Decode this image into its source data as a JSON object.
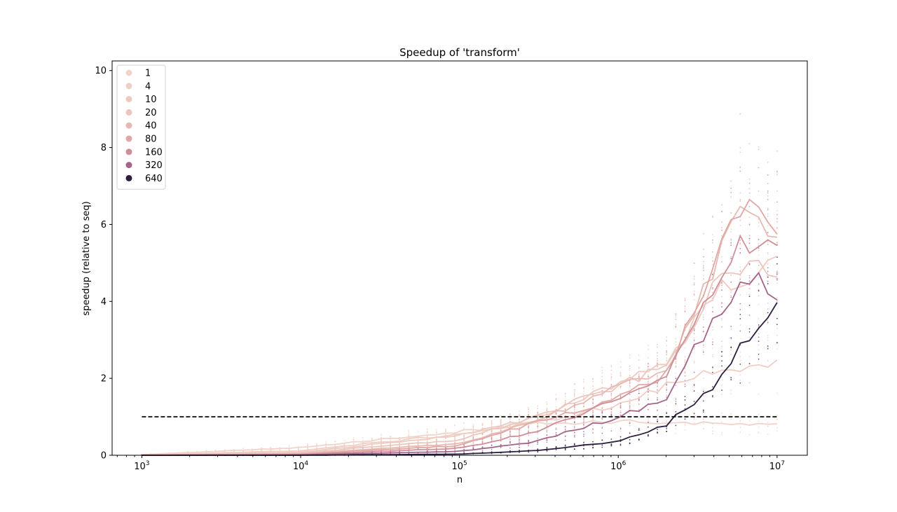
{
  "chart_data": {
    "type": "line",
    "title": "Speedup of 'transform'",
    "xlabel": "n",
    "ylabel": "speedup (relative to seq)",
    "xscale": "log",
    "xlim": [
      650,
      15500000
    ],
    "ylim": [
      0,
      10.25
    ],
    "x_ticks": [
      1000,
      10000,
      100000,
      1000000,
      10000000
    ],
    "x_tick_bases": [
      "10",
      "10",
      "10",
      "10",
      "10"
    ],
    "x_tick_exps": [
      "3",
      "4",
      "5",
      "6",
      "7"
    ],
    "y_ticks": [
      0,
      2,
      4,
      6,
      8,
      10
    ],
    "y_tick_labels": [
      "0",
      "2",
      "4",
      "6",
      "8",
      "10"
    ],
    "legend_position": "upper-left",
    "reference_line": {
      "y": 1.0,
      "x_range": [
        1000,
        10000000
      ],
      "style": "dashed",
      "color": "#1a1a1a"
    },
    "series": [
      {
        "name": "1",
        "color": "#f1d3c9",
        "anchors": [
          [
            1000,
            0.02
          ],
          [
            10000,
            0.2
          ],
          [
            100000,
            0.62
          ],
          [
            300000,
            0.82
          ],
          [
            1000000,
            0.88
          ],
          [
            3000000,
            0.83
          ],
          [
            10000000,
            0.78
          ]
        ]
      },
      {
        "name": "4",
        "color": "#efcfc5",
        "anchors": [
          [
            1000,
            0.01
          ],
          [
            10000,
            0.12
          ],
          [
            100000,
            0.55
          ],
          [
            300000,
            0.85
          ],
          [
            1000000,
            1.3
          ],
          [
            2000000,
            1.8
          ],
          [
            4000000,
            2.2
          ],
          [
            10000000,
            2.45
          ]
        ]
      },
      {
        "name": "10",
        "color": "#edcbc1",
        "anchors": [
          [
            1000,
            0.01
          ],
          [
            10000,
            0.08
          ],
          [
            100000,
            0.52
          ],
          [
            300000,
            0.95
          ],
          [
            1000000,
            1.9
          ],
          [
            2000000,
            2.4
          ],
          [
            4000000,
            4.2
          ],
          [
            5500000,
            4.6
          ],
          [
            10000000,
            4.9
          ]
        ]
      },
      {
        "name": "20",
        "color": "#ebc6bc",
        "anchors": [
          [
            1000,
            0.005
          ],
          [
            10000,
            0.06
          ],
          [
            100000,
            0.4
          ],
          [
            300000,
            1.0
          ],
          [
            1000000,
            1.8
          ],
          [
            2000000,
            2.3
          ],
          [
            4000000,
            4.3
          ],
          [
            5500000,
            5.0
          ],
          [
            10000000,
            4.6
          ]
        ]
      },
      {
        "name": "40",
        "color": "#e6bab2",
        "anchors": [
          [
            1000,
            0.005
          ],
          [
            10000,
            0.04
          ],
          [
            100000,
            0.3
          ],
          [
            300000,
            0.9
          ],
          [
            1000000,
            1.75
          ],
          [
            2000000,
            2.25
          ],
          [
            4000000,
            4.8
          ],
          [
            5800000,
            6.3
          ],
          [
            10000000,
            5.9
          ]
        ]
      },
      {
        "name": "80",
        "color": "#dea9a5",
        "anchors": [
          [
            1000,
            0.003
          ],
          [
            10000,
            0.03
          ],
          [
            100000,
            0.25
          ],
          [
            300000,
            0.85
          ],
          [
            1000000,
            1.5
          ],
          [
            2000000,
            2.1
          ],
          [
            4000000,
            4.9
          ],
          [
            5800000,
            6.6
          ],
          [
            10000000,
            5.6
          ]
        ]
      },
      {
        "name": "160",
        "color": "#cf8f99",
        "anchors": [
          [
            1000,
            0.002
          ],
          [
            10000,
            0.02
          ],
          [
            100000,
            0.18
          ],
          [
            300000,
            0.6
          ],
          [
            1000000,
            1.45
          ],
          [
            2000000,
            2.0
          ],
          [
            4000000,
            4.4
          ],
          [
            5800000,
            5.6
          ],
          [
            10000000,
            5.5
          ]
        ]
      },
      {
        "name": "320",
        "color": "#a3668a",
        "anchors": [
          [
            1000,
            0.001
          ],
          [
            10000,
            0.01
          ],
          [
            100000,
            0.1
          ],
          [
            300000,
            0.35
          ],
          [
            1000000,
            1.0
          ],
          [
            2000000,
            1.5
          ],
          [
            4000000,
            3.6
          ],
          [
            7000000,
            4.6
          ],
          [
            10000000,
            4.2
          ]
        ]
      },
      {
        "name": "640",
        "color": "#2d1e3e",
        "anchors": [
          [
            1000,
            0.0
          ],
          [
            10000,
            0.0
          ],
          [
            100000,
            0.03
          ],
          [
            300000,
            0.12
          ],
          [
            1000000,
            0.35
          ],
          [
            2000000,
            0.8
          ],
          [
            4000000,
            1.8
          ],
          [
            6500000,
            3.05
          ],
          [
            10000000,
            3.9
          ]
        ]
      }
    ]
  }
}
